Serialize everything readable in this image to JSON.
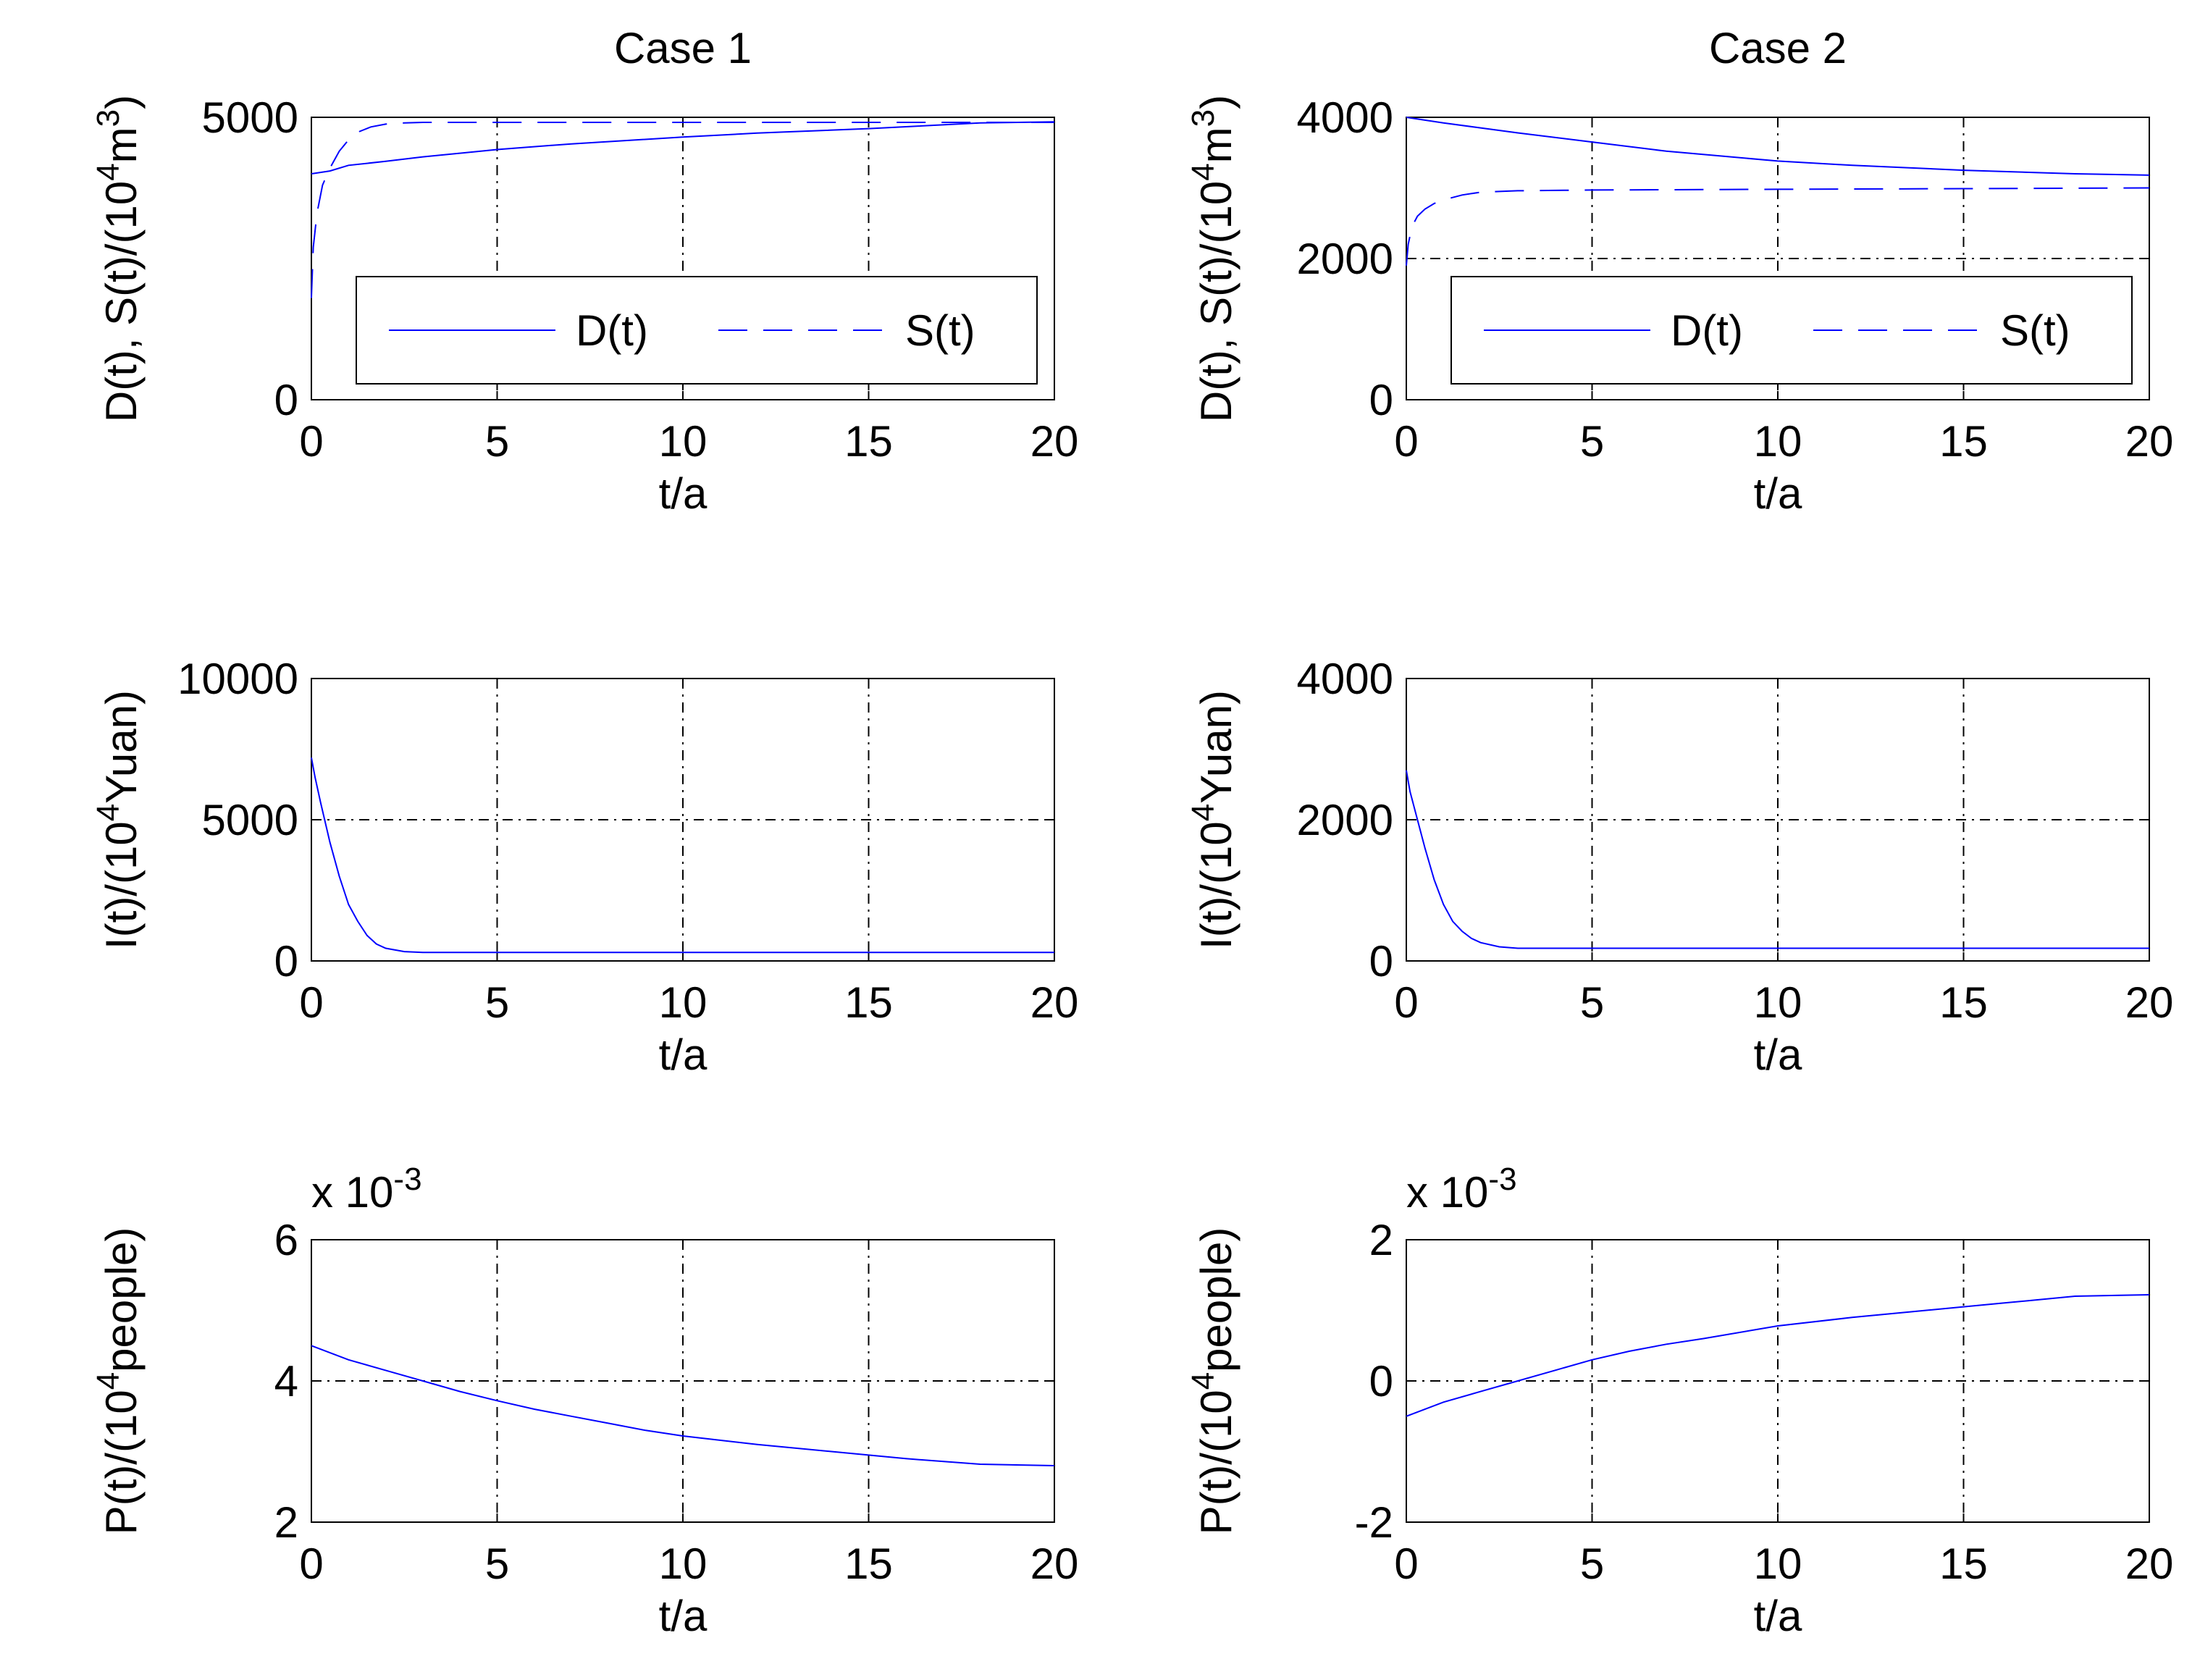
{
  "colors": {
    "line": "#0000ff",
    "axis": "#000000",
    "grid": "#000000",
    "background": "#ffffff"
  },
  "chart_data": [
    {
      "id": "p11",
      "type": "line",
      "title": "Case 1",
      "xlabel": "t/a",
      "ylabel": {
        "main": "D(t),  S(t)/(10",
        "sup": "4",
        "tail": "m",
        "sup2": "3",
        "close": ")"
      },
      "xlim": [
        0,
        20
      ],
      "ylim": [
        0,
        5000
      ],
      "xticks": [
        0,
        5,
        10,
        15,
        20
      ],
      "yticks": [
        0,
        5000
      ],
      "ygrid": [],
      "legend": {
        "position": "bottom-right",
        "entries": [
          "D(t)",
          "S(t)"
        ]
      },
      "series": [
        {
          "name": "D(t)",
          "style": "solid",
          "x": [
            0,
            0.5,
            1,
            2,
            3,
            5,
            7,
            10,
            12,
            15,
            18,
            20
          ],
          "y": [
            4000,
            4050,
            4150,
            4220,
            4300,
            4430,
            4530,
            4650,
            4720,
            4800,
            4900,
            4920
          ]
        },
        {
          "name": "S(t)",
          "style": "dashed",
          "x": [
            0,
            0.05,
            0.15,
            0.3,
            0.5,
            0.75,
            1,
            1.3,
            1.6,
            2,
            2.5,
            3,
            5,
            10,
            15,
            20
          ],
          "y": [
            1800,
            2700,
            3300,
            3800,
            4100,
            4400,
            4600,
            4750,
            4830,
            4880,
            4900,
            4910,
            4910,
            4910,
            4910,
            4910
          ]
        }
      ]
    },
    {
      "id": "p12",
      "type": "line",
      "title": "Case 2",
      "xlabel": "t/a",
      "ylabel": {
        "main": "D(t),  S(t)/(10",
        "sup": "4",
        "tail": "m",
        "sup2": "3",
        "close": ")"
      },
      "xlim": [
        0,
        20
      ],
      "ylim": [
        0,
        4000
      ],
      "xticks": [
        0,
        5,
        10,
        15,
        20
      ],
      "yticks": [
        0,
        2000,
        4000
      ],
      "ygrid": [
        2000
      ],
      "legend": {
        "position": "bottom-right",
        "entries": [
          "D(t)",
          "S(t)"
        ]
      },
      "series": [
        {
          "name": "D(t)",
          "style": "solid",
          "x": [
            0,
            1,
            2,
            3,
            5,
            7,
            10,
            12,
            15,
            18,
            20
          ],
          "y": [
            4000,
            3920,
            3850,
            3780,
            3650,
            3520,
            3380,
            3320,
            3250,
            3200,
            3180
          ]
        },
        {
          "name": "S(t)",
          "style": "dashed",
          "x": [
            0,
            0.05,
            0.15,
            0.3,
            0.5,
            0.75,
            1,
            1.5,
            2,
            3,
            5,
            10,
            15,
            20
          ],
          "y": [
            1900,
            2200,
            2450,
            2600,
            2700,
            2780,
            2830,
            2900,
            2940,
            2960,
            2970,
            2980,
            2990,
            3000
          ]
        }
      ]
    },
    {
      "id": "p21",
      "type": "line",
      "title": "",
      "xlabel": "t/a",
      "ylabel": {
        "main": "I(t)/(10",
        "sup": "4",
        "tail": "Yuan)"
      },
      "xlim": [
        0,
        20
      ],
      "ylim": [
        0,
        10000
      ],
      "xticks": [
        0,
        5,
        10,
        15,
        20
      ],
      "yticks": [
        0,
        5000,
        10000
      ],
      "ygrid": [
        5000
      ],
      "series": [
        {
          "name": "I(t)",
          "style": "solid",
          "x": [
            0,
            0.1,
            0.25,
            0.5,
            0.75,
            1,
            1.25,
            1.5,
            1.75,
            2,
            2.5,
            3,
            5,
            10,
            15,
            20
          ],
          "y": [
            7200,
            6500,
            5600,
            4200,
            3000,
            2000,
            1400,
            900,
            600,
            450,
            330,
            300,
            300,
            300,
            300,
            300
          ]
        }
      ]
    },
    {
      "id": "p22",
      "type": "line",
      "title": "",
      "xlabel": "t/a",
      "ylabel": {
        "main": "I(t)/(10",
        "sup": "4",
        "tail": "Yuan)"
      },
      "xlim": [
        0,
        20
      ],
      "ylim": [
        0,
        4000
      ],
      "xticks": [
        0,
        5,
        10,
        15,
        20
      ],
      "yticks": [
        0,
        2000,
        4000
      ],
      "ygrid": [
        2000
      ],
      "series": [
        {
          "name": "I(t)",
          "style": "solid",
          "x": [
            0,
            0.1,
            0.25,
            0.5,
            0.75,
            1,
            1.25,
            1.5,
            1.75,
            2,
            2.5,
            3,
            5,
            10,
            15,
            20
          ],
          "y": [
            2700,
            2400,
            2100,
            1600,
            1150,
            800,
            560,
            420,
            320,
            260,
            200,
            180,
            180,
            180,
            180,
            180
          ]
        }
      ]
    },
    {
      "id": "p31",
      "type": "line",
      "title": "",
      "xlabel": "t/a",
      "ylabel": {
        "main": "P(t)/(10",
        "sup": "4",
        "tail": "people)"
      },
      "multiplier": {
        "base": "x 10",
        "exp": "-3"
      },
      "xlim": [
        0,
        20
      ],
      "ylim": [
        2,
        6
      ],
      "xticks": [
        0,
        5,
        10,
        15,
        20
      ],
      "yticks": [
        2,
        4,
        6
      ],
      "ygrid": [
        4
      ],
      "series": [
        {
          "name": "P(t)",
          "style": "solid",
          "x": [
            0,
            1,
            2,
            3,
            4,
            5,
            6,
            7,
            8,
            9,
            10,
            12,
            14,
            16,
            18,
            20
          ],
          "y": [
            4.5,
            4.3,
            4.15,
            4.0,
            3.85,
            3.72,
            3.6,
            3.5,
            3.4,
            3.3,
            3.22,
            3.1,
            3.0,
            2.9,
            2.82,
            2.8
          ]
        }
      ]
    },
    {
      "id": "p32",
      "type": "line",
      "title": "",
      "xlabel": "t/a",
      "ylabel": {
        "main": "P(t)/(10",
        "sup": "4",
        "tail": "people)"
      },
      "multiplier": {
        "base": "x 10",
        "exp": "-3"
      },
      "xlim": [
        0,
        20
      ],
      "ylim": [
        -2,
        2
      ],
      "xticks": [
        0,
        5,
        10,
        15,
        20
      ],
      "yticks": [
        -2,
        0,
        2
      ],
      "ygrid": [
        0
      ],
      "series": [
        {
          "name": "P(t)",
          "style": "solid",
          "x": [
            0,
            1,
            2,
            3,
            4,
            5,
            6,
            7,
            8,
            10,
            12,
            14,
            16,
            18,
            20
          ],
          "y": [
            -0.5,
            -0.3,
            -0.15,
            0.0,
            0.15,
            0.3,
            0.42,
            0.52,
            0.6,
            0.78,
            0.9,
            1.0,
            1.1,
            1.2,
            1.22
          ]
        }
      ]
    }
  ]
}
